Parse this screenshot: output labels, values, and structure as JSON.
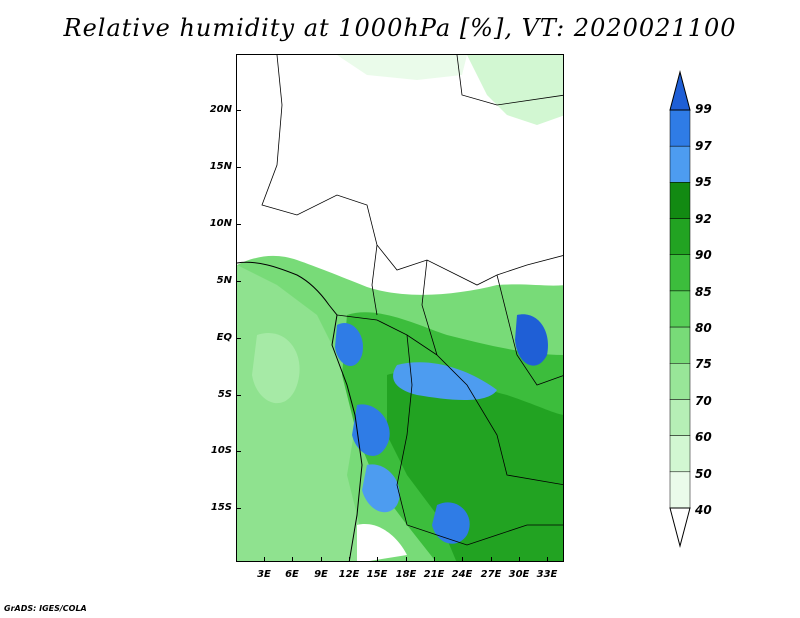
{
  "title": "Relative humidity at 1000hPa [%], VT: 2020021100",
  "credit": "GrADS: IGES/COLA",
  "map": {
    "lat_labels": [
      "20N",
      "15N",
      "10N",
      "5N",
      "EQ",
      "5S",
      "10S",
      "15S"
    ],
    "lon_labels": [
      "3E",
      "6E",
      "9E",
      "12E",
      "15E",
      "18E",
      "21E",
      "24E",
      "27E",
      "30E",
      "33E"
    ]
  },
  "colorbar": {
    "levels": [
      "99",
      "97",
      "95",
      "92",
      "90",
      "85",
      "80",
      "75",
      "70",
      "60",
      "50",
      "40"
    ],
    "colors": [
      "#1f5fd6",
      "#2f7ce6",
      "#4d9cf0",
      "#128a12",
      "#22a322",
      "#3cbd3c",
      "#58cf58",
      "#78db78",
      "#98e698",
      "#b6efb6",
      "#d2f7d2",
      "#eafbea",
      "#ffffff"
    ]
  }
}
